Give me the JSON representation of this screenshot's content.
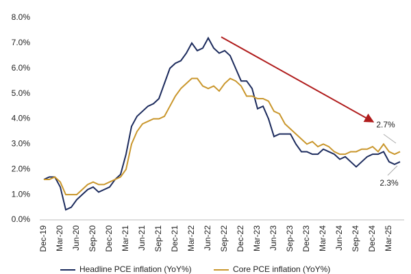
{
  "chart_data": {
    "type": "line",
    "categories": [
      "Dec-19",
      null,
      null,
      "Mar-20",
      null,
      null,
      "Jun-20",
      null,
      null,
      "Sep-20",
      null,
      null,
      "Dec-20",
      null,
      null,
      "Mar-21",
      null,
      null,
      "Jun-21",
      null,
      null,
      "Sep-21",
      null,
      null,
      "Dec-21",
      null,
      null,
      "Mar-22",
      null,
      null,
      "Jun-22",
      null,
      null,
      "Sep-22",
      null,
      null,
      "Dec-22",
      null,
      null,
      "Mar-23",
      null,
      null,
      "Jun-23",
      null,
      null,
      "Sep-23",
      null,
      null,
      "Dec-23",
      null,
      null,
      "Mar-24",
      null,
      null,
      "Jun-24",
      null,
      null,
      "Sep-24",
      null,
      null,
      "Dec-24",
      null,
      null,
      "Mar-25",
      null,
      null
    ],
    "series": [
      {
        "name": "Headline PCE inflation (YoY%)",
        "color": "#1b2a5c",
        "values": [
          1.6,
          1.7,
          1.7,
          1.3,
          0.4,
          0.5,
          0.8,
          1.0,
          1.2,
          1.3,
          1.1,
          1.2,
          1.3,
          1.6,
          1.8,
          2.6,
          3.7,
          4.1,
          4.3,
          4.5,
          4.6,
          4.8,
          5.4,
          6.0,
          6.2,
          6.3,
          6.6,
          7.0,
          6.7,
          6.8,
          7.2,
          6.8,
          6.6,
          6.7,
          6.5,
          6.0,
          5.5,
          5.5,
          5.2,
          4.4,
          4.5,
          4.0,
          3.3,
          3.4,
          3.4,
          3.4,
          3.0,
          2.7,
          2.7,
          2.6,
          2.6,
          2.8,
          2.7,
          2.6,
          2.4,
          2.5,
          2.3,
          2.1,
          2.3,
          2.5,
          2.6,
          2.6,
          2.7,
          2.3,
          2.2,
          2.3
        ]
      },
      {
        "name": "Core PCE inflation (YoY%)",
        "color": "#c9962b",
        "values": [
          1.6,
          1.6,
          1.7,
          1.5,
          1.0,
          1.0,
          1.0,
          1.2,
          1.4,
          1.5,
          1.4,
          1.4,
          1.5,
          1.6,
          1.7,
          2.0,
          3.0,
          3.5,
          3.8,
          3.9,
          4.0,
          4.0,
          4.1,
          4.5,
          4.9,
          5.2,
          5.4,
          5.6,
          5.6,
          5.3,
          5.2,
          5.3,
          5.1,
          5.4,
          5.6,
          5.5,
          5.3,
          4.9,
          4.9,
          4.8,
          4.8,
          4.7,
          4.3,
          4.2,
          3.8,
          3.6,
          3.4,
          3.2,
          3.0,
          3.1,
          2.9,
          3.0,
          2.9,
          2.7,
          2.6,
          2.6,
          2.7,
          2.7,
          2.8,
          2.8,
          2.9,
          2.7,
          3.0,
          2.7,
          2.6,
          2.7
        ]
      }
    ],
    "ylim": [
      0,
      8
    ],
    "yticks": [
      {
        "value": 0,
        "label": "0.0%"
      },
      {
        "value": 1,
        "label": "1.0%"
      },
      {
        "value": 2,
        "label": "2.0%"
      },
      {
        "value": 3,
        "label": "3.0%"
      },
      {
        "value": 4,
        "label": "4.0%"
      },
      {
        "value": 5,
        "label": "5.0%"
      },
      {
        "value": 6,
        "label": "6.0%"
      },
      {
        "value": 7,
        "label": "7.0%"
      },
      {
        "value": 8,
        "label": "8.0%"
      }
    ],
    "annotations": [
      "2.7%",
      "2.3%"
    ],
    "grid": false
  }
}
